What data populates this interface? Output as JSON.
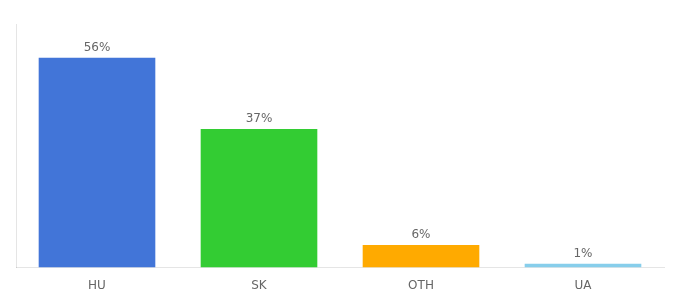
{
  "chart_data": {
    "type": "bar",
    "categories": [
      "HU",
      "SK",
      "OTH",
      "UA"
    ],
    "values": [
      56,
      37,
      6,
      1
    ],
    "value_labels": [
      "56%",
      "37%",
      "6%",
      "1%"
    ],
    "data_labels": true,
    "colors": [
      "#4275d8",
      "#33cc33",
      "#ffaa00",
      "#87ceeb"
    ],
    "ylim": [
      0,
      65
    ],
    "grid": false,
    "tick_labels": "x"
  }
}
